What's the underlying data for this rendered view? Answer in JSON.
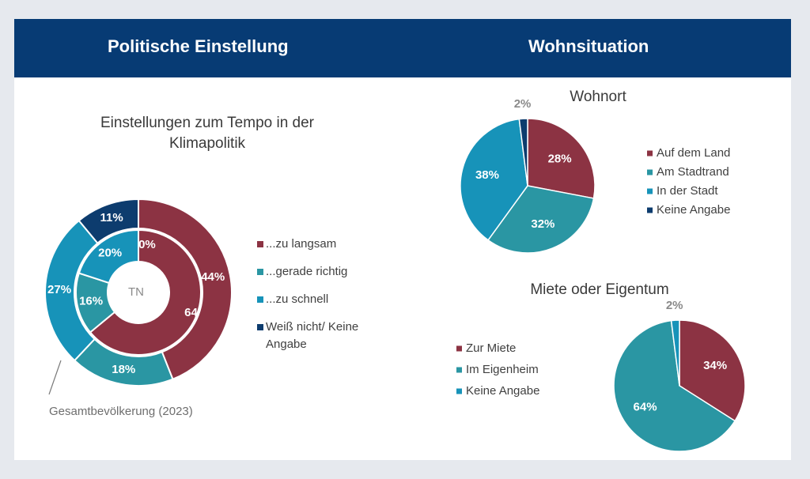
{
  "header": {
    "left_title": "Politische Einstellung",
    "right_title": "Wohnsituation"
  },
  "colors": {
    "header_bg": "#073b74",
    "maroon": "#8c3343",
    "teal": "#2a96a3",
    "blue": "#1793b9",
    "navy": "#0d3c6e"
  },
  "chart_data": [
    {
      "type": "donut",
      "title_lines": [
        "Einstellungen zum Tempo in der",
        "Klimapolitik"
      ],
      "center_label": "TN",
      "outer_ring_label": "Gesamtbevölkerung (2023)",
      "categories": [
        "...zu langsam",
        "...gerade richtig",
        "...zu schnell",
        "Weiß nicht/ Keine Angabe"
      ],
      "legend_lines": [
        [
          "...zu langsam"
        ],
        [
          "...gerade richtig"
        ],
        [
          "...zu schnell"
        ],
        [
          "Weiß nicht/ Keine",
          "Angabe"
        ]
      ],
      "series": [
        {
          "ring": "inner",
          "name": "TN",
          "values": [
            64,
            16,
            20,
            0
          ],
          "labels": [
            "64%",
            "16%",
            "20%",
            "0%"
          ]
        },
        {
          "ring": "outer",
          "name": "Gesamtbevölkerung (2023)",
          "values": [
            44,
            18,
            27,
            11
          ],
          "labels": [
            "44%",
            "18%",
            "27%",
            "11%"
          ]
        }
      ],
      "series_colors": [
        "#8c3343",
        "#2a96a3",
        "#1793b9",
        "#0d3c6e"
      ]
    },
    {
      "type": "pie",
      "title": "Wohnort",
      "categories": [
        "Auf dem Land",
        "Am Stadtrand",
        "In der Stadt",
        "Keine Angabe"
      ],
      "values": [
        28,
        32,
        38,
        2
      ],
      "labels": [
        "28%",
        "32%",
        "38%",
        "2%"
      ],
      "series_colors": [
        "#8c3343",
        "#2a96a3",
        "#1793b9",
        "#0d3c6e"
      ]
    },
    {
      "type": "pie",
      "title": "Miete oder Eigentum",
      "categories": [
        "Zur Miete",
        "Im Eigenheim",
        "Keine Angabe"
      ],
      "values": [
        34,
        64,
        2
      ],
      "labels": [
        "34%",
        "64%",
        "2%"
      ],
      "series_colors": [
        "#8c3343",
        "#2a96a3",
        "#1793b9"
      ]
    }
  ]
}
